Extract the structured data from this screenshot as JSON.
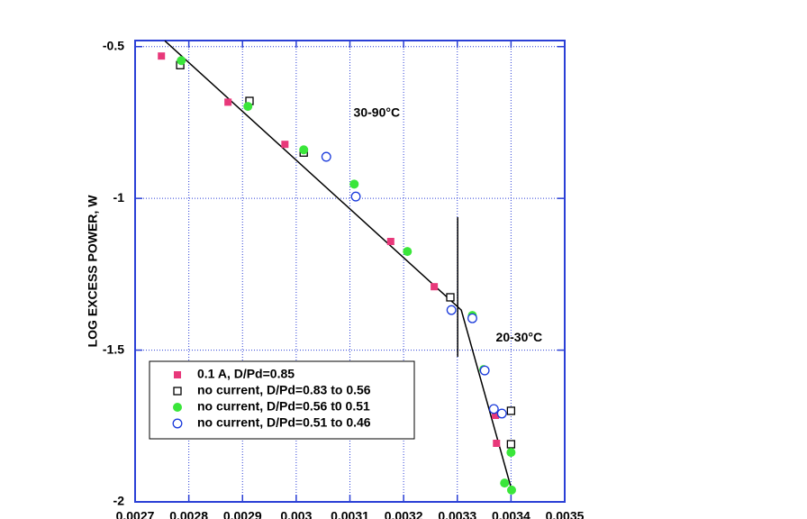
{
  "chart_data": {
    "type": "scatter",
    "y_label": "LOG EXCESS POWER, W",
    "xlim": [
      0.0027,
      0.0035
    ],
    "ylim": [
      -2,
      -0.48
    ],
    "xticks": [
      0.0027,
      0.0028,
      0.0029,
      0.003,
      0.0031,
      0.0032,
      0.0033,
      0.0034,
      0.0035
    ],
    "yticks": [
      -2,
      -1.5,
      -1,
      -0.5
    ],
    "grid": true,
    "grid_color": "#2a3fd6",
    "legend_position": "lower left",
    "annotations": [
      {
        "text": "30-90°C",
        "x": 0.00315,
        "y": -0.72
      },
      {
        "text": "20-30°C",
        "x": 0.003415,
        "y": -1.46
      }
    ],
    "series": [
      {
        "name": "0.1 A, D/Pd=0.85",
        "color": "#e8387a",
        "marker": "square",
        "filled": true,
        "x": [
          0.002749,
          0.002873,
          0.002979,
          0.003176,
          0.003257,
          0.003371,
          0.003373
        ],
        "values": [
          -0.531,
          -0.683,
          -0.822,
          -1.142,
          -1.291,
          -1.715,
          -1.807
        ]
      },
      {
        "name": "no current, D/Pd=0.83 to 0.56",
        "color": "#000000",
        "marker": "square",
        "filled": false,
        "x": [
          0.002784,
          0.002913,
          0.003014,
          0.003287,
          0.0034,
          0.0034
        ],
        "values": [
          -0.561,
          -0.679,
          -0.849,
          -1.326,
          -1.7,
          -1.81
        ]
      },
      {
        "name": "no current, D/Pd=0.56 t0 0.51",
        "color": "#3ae63a",
        "marker": "circle",
        "filled": true,
        "x": [
          0.002786,
          0.00291,
          0.003014,
          0.003108,
          0.003207,
          0.003328,
          0.003349,
          0.003388,
          0.0034,
          0.003401
        ],
        "values": [
          -0.546,
          -0.697,
          -0.84,
          -0.953,
          -1.175,
          -1.386,
          -1.564,
          -1.938,
          -1.837,
          -1.961
        ]
      },
      {
        "name": "no current, D/Pd=0.51 to 0.46",
        "color": "#1a3adb",
        "marker": "circle",
        "filled": false,
        "x": [
          0.003056,
          0.003111,
          0.003289,
          0.003328,
          0.003351,
          0.003368,
          0.003383
        ],
        "values": [
          -0.863,
          -0.994,
          -1.368,
          -1.395,
          -1.567,
          -1.694,
          -1.709
        ]
      }
    ],
    "fit_lines": [
      {
        "x": [
          0.0027554,
          0.0033074,
          0.0034013
        ],
        "y": [
          -0.481,
          -1.368,
          -1.961
        ]
      },
      {
        "x": [
          0.0033007,
          0.0033007
        ],
        "y": [
          -1.062,
          -1.522
        ]
      }
    ]
  }
}
